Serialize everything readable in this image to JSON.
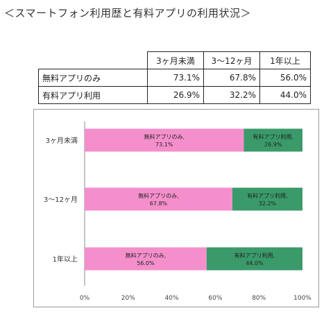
{
  "title": "＜スマートフォン利用歴と有料アプリの利用状況＞",
  "table": {
    "headers": [
      "3ヶ月未満",
      "3〜12ヶ月",
      "1年以上"
    ],
    "rows": [
      {
        "label": "無料アプリのみ",
        "values": [
          "73.1%",
          "67.8%",
          "56.0%"
        ]
      },
      {
        "label": "有料アプリ利用",
        "values": [
          "26.9%",
          "32.2%",
          "44.0%"
        ]
      }
    ]
  },
  "chart_data": {
    "type": "bar",
    "orientation": "horizontal",
    "stacked": true,
    "categories": [
      "3ヶ月未満",
      "3〜12ヶ月",
      "1年以上"
    ],
    "series": [
      {
        "name": "無料アプリのみ",
        "values": [
          73.1,
          67.8,
          56.0
        ],
        "labels": [
          "無料アプリのみ,\n73.1%",
          "無料アプリのみ,\n67.8%",
          "無料アプリのみ,\n56.0%"
        ],
        "color": "#f48fcc"
      },
      {
        "name": "有料アプリ利用",
        "values": [
          26.9,
          32.2,
          44.0
        ],
        "labels": [
          "有料アプリ利用,\n26.9%",
          "有料アプリ利用,\n32.2%",
          "有料アプリ利用,\n44.0%"
        ],
        "color": "#3a9a6a"
      }
    ],
    "xlim": [
      0,
      100
    ],
    "xticks": [
      "0%",
      "20%",
      "40%",
      "60%",
      "80%",
      "100%"
    ],
    "grid": false,
    "legend": "none"
  }
}
